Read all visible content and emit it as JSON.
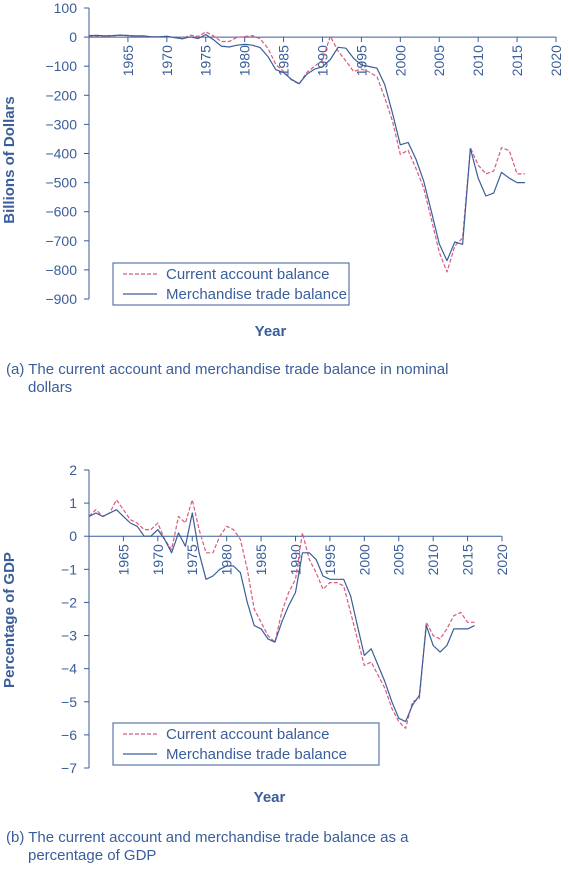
{
  "chart_data": [
    {
      "type": "line",
      "xlabel": "Year",
      "ylabel": "Billions of Dollars",
      "xlim": [
        1960,
        2020
      ],
      "ylim": [
        -900,
        100
      ],
      "xticks": [
        1965,
        1970,
        1975,
        1980,
        1985,
        1990,
        1995,
        2000,
        2005,
        2010,
        2015,
        2020
      ],
      "yticks": [
        100,
        0,
        -100,
        -200,
        -300,
        -400,
        -500,
        -600,
        -700,
        -800,
        -900
      ],
      "ytick_labels": [
        "100",
        "0",
        "−100",
        "−200",
        "−300",
        "−400",
        "−500",
        "−600",
        "−700",
        "−800",
        "−900"
      ],
      "legend_position": "bottom-left",
      "caption_line1": "(a) The current account and merchandise trade balance in nominal",
      "caption_line2": "dollars",
      "series": [
        {
          "name": "Current account balance",
          "style": "dashed",
          "color": "#d85a7f",
          "x": [
            1960,
            1961,
            1962,
            1963,
            1964,
            1965,
            1966,
            1967,
            1968,
            1969,
            1970,
            1971,
            1972,
            1973,
            1974,
            1975,
            1976,
            1977,
            1978,
            1979,
            1980,
            1981,
            1982,
            1983,
            1984,
            1985,
            1986,
            1987,
            1988,
            1989,
            1990,
            1991,
            1992,
            1993,
            1994,
            1995,
            1996,
            1997,
            1998,
            1999,
            2000,
            2001,
            2002,
            2003,
            2004,
            2005,
            2006,
            2007,
            2008,
            2009,
            2010,
            2011,
            2012,
            2013,
            2014,
            2015,
            2016
          ],
          "y": [
            3,
            4,
            3,
            4,
            7,
            6,
            3,
            3,
            1,
            1,
            2,
            -1,
            -6,
            7,
            2,
            18,
            4,
            -15,
            -15,
            -1,
            2,
            5,
            -6,
            -39,
            -94,
            -118,
            -147,
            -161,
            -121,
            -100,
            -79,
            3,
            -48,
            -82,
            -118,
            -110,
            -120,
            -136,
            -209,
            -290,
            -403,
            -389,
            -451,
            -519,
            -628,
            -740,
            -807,
            -718,
            -690,
            -380,
            -440,
            -470,
            -460,
            -380,
            -390,
            -470,
            -470
          ]
        },
        {
          "name": "Merchandise trade balance",
          "style": "solid",
          "color": "#3a5e9a",
          "x": [
            1960,
            1961,
            1962,
            1963,
            1964,
            1965,
            1966,
            1967,
            1968,
            1969,
            1970,
            1971,
            1972,
            1973,
            1974,
            1975,
            1976,
            1977,
            1978,
            1979,
            1980,
            1981,
            1982,
            1983,
            1984,
            1985,
            1986,
            1987,
            1988,
            1989,
            1990,
            1991,
            1992,
            1993,
            1994,
            1995,
            1996,
            1997,
            1998,
            1999,
            2000,
            2001,
            2002,
            2003,
            2004,
            2005,
            2006,
            2007,
            2008,
            2009,
            2010,
            2011,
            2012,
            2013,
            2014,
            2015,
            2016
          ],
          "y": [
            5,
            6,
            4,
            5,
            7,
            5,
            4,
            4,
            1,
            1,
            3,
            -2,
            -6,
            1,
            -5,
            9,
            -9,
            -31,
            -34,
            -28,
            -25,
            -28,
            -36,
            -67,
            -112,
            -122,
            -145,
            -160,
            -127,
            -110,
            -102,
            -77,
            -35,
            -38,
            -73,
            -96,
            -101,
            -107,
            -164,
            -263,
            -370,
            -362,
            -419,
            -495,
            -601,
            -711,
            -768,
            -704,
            -712,
            -383,
            -485,
            -546,
            -536,
            -465,
            -485,
            -500,
            -500
          ]
        }
      ]
    },
    {
      "type": "line",
      "xlabel": "Year",
      "ylabel": "Percentage of GDP",
      "xlim": [
        1960,
        2020
      ],
      "ylim": [
        -7,
        2
      ],
      "xticks": [
        1965,
        1970,
        1975,
        1980,
        1985,
        1990,
        1995,
        2000,
        2005,
        2010,
        2015,
        2020
      ],
      "yticks": [
        2,
        1,
        0,
        -1,
        -2,
        -3,
        -4,
        -5,
        -6,
        -7
      ],
      "ytick_labels": [
        "2",
        "1",
        "0",
        "−1",
        "−2",
        "−3",
        "−4",
        "−5",
        "−6",
        "−7"
      ],
      "legend_position": "bottom-left",
      "caption_line1": "(b) The current account and merchandise trade balance as a",
      "caption_line2": "percentage of GDP",
      "series": [
        {
          "name": "Current  account balance",
          "style": "dashed",
          "color": "#d85a7f",
          "x": [
            1960,
            1961,
            1962,
            1963,
            1964,
            1965,
            1966,
            1967,
            1968,
            1969,
            1970,
            1971,
            1972,
            1973,
            1974,
            1975,
            1976,
            1977,
            1978,
            1979,
            1980,
            1981,
            1982,
            1983,
            1984,
            1985,
            1986,
            1987,
            1988,
            1989,
            1990,
            1991,
            1992,
            1993,
            1994,
            1995,
            1996,
            1997,
            1998,
            1999,
            2000,
            2001,
            2002,
            2003,
            2004,
            2005,
            2006,
            2007,
            2008,
            2009,
            2010,
            2011,
            2012,
            2013,
            2014,
            2015,
            2016
          ],
          "y": [
            0.6,
            0.8,
            0.6,
            0.7,
            1.1,
            0.8,
            0.5,
            0.4,
            0.2,
            0.2,
            0.4,
            -0.1,
            -0.4,
            0.6,
            0.4,
            1.1,
            0.2,
            -0.5,
            -0.5,
            0.0,
            0.3,
            0.2,
            -0.1,
            -1.0,
            -2.2,
            -2.6,
            -3.0,
            -3.2,
            -2.3,
            -1.7,
            -1.3,
            0.1,
            -0.7,
            -1.1,
            -1.6,
            -1.4,
            -1.4,
            -1.5,
            -2.3,
            -3.1,
            -3.9,
            -3.8,
            -4.2,
            -4.6,
            -5.2,
            -5.6,
            -5.8,
            -5.0,
            -4.9,
            -2.6,
            -3.0,
            -3.1,
            -2.8,
            -2.4,
            -2.3,
            -2.6,
            -2.6
          ]
        },
        {
          "name": "Merchandise trade balance",
          "style": "solid",
          "color": "#3a5e9a",
          "x": [
            1960,
            1961,
            1962,
            1963,
            1964,
            1965,
            1966,
            1967,
            1968,
            1969,
            1970,
            1971,
            1972,
            1973,
            1974,
            1975,
            1976,
            1977,
            1978,
            1979,
            1980,
            1981,
            1982,
            1983,
            1984,
            1985,
            1986,
            1987,
            1988,
            1989,
            1990,
            1991,
            1992,
            1993,
            1994,
            1995,
            1996,
            1997,
            1998,
            1999,
            2000,
            2001,
            2002,
            2003,
            2004,
            2005,
            2006,
            2007,
            2008,
            2009,
            2010,
            2011,
            2012,
            2013,
            2014,
            2015,
            2016
          ],
          "y": [
            0.6,
            0.7,
            0.6,
            0.7,
            0.8,
            0.6,
            0.4,
            0.3,
            0.0,
            0.0,
            0.2,
            -0.1,
            -0.5,
            0.1,
            -0.3,
            0.7,
            -0.5,
            -1.3,
            -1.2,
            -1.0,
            -0.9,
            -0.9,
            -1.1,
            -2.0,
            -2.7,
            -2.8,
            -3.1,
            -3.2,
            -2.6,
            -2.1,
            -1.7,
            -0.5,
            -0.5,
            -0.7,
            -1.2,
            -1.3,
            -1.3,
            -1.3,
            -1.8,
            -2.7,
            -3.6,
            -3.4,
            -3.9,
            -4.4,
            -5.0,
            -5.5,
            -5.6,
            -5.1,
            -4.8,
            -2.7,
            -3.3,
            -3.5,
            -3.3,
            -2.8,
            -2.8,
            -2.8,
            -2.7
          ]
        }
      ]
    }
  ]
}
